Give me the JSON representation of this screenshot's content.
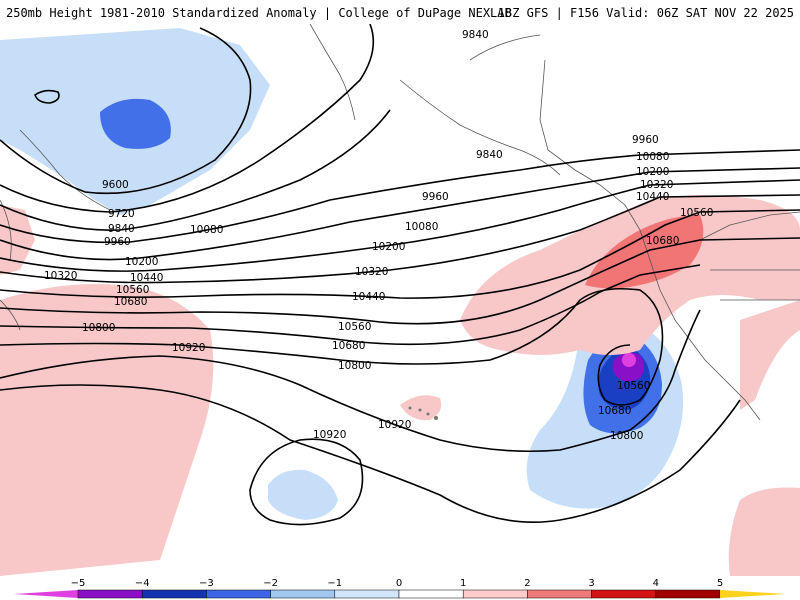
{
  "header": {
    "left_text": "250mb Height 1981-2010 Standardized Anomaly | College of DuPage NEXLAB",
    "right_text": "18Z GFS | F156 Valid: 06Z SAT NOV 22 2025"
  },
  "contours": {
    "c9600": "9600",
    "c9720": "9720",
    "c9840_a": "9840",
    "c9840_b": "9840",
    "c9840_c": "9840",
    "c9960_a": "9960",
    "c9960_b": "9960",
    "c9960_c": "9960",
    "c10080_a": "10080",
    "c10080_b": "10080",
    "c10080_c": "10080",
    "c10200_a": "10200",
    "c10200_b": "10200",
    "c10200_c": "10200",
    "c10320_a": "10320",
    "c10320_b": "10320",
    "c10320_c": "10320",
    "c10440_a": "10440",
    "c10440_b": "10440",
    "c10440_c": "10440",
    "c10560_a": "10560",
    "c10560_b": "10560",
    "c10560_c": "10560",
    "c10560_d": "10560",
    "c10680_a": "10680",
    "c10680_b": "10680",
    "c10680_c": "10680",
    "c10680_d": "10680",
    "c10800_a": "10800",
    "c10800_b": "10800",
    "c10800_c": "10800",
    "c10920_a": "10920",
    "c10920_b": "10920",
    "c10920_c": "10920"
  },
  "colorbar": {
    "ticks": [
      "−5",
      "−4",
      "−3",
      "−2",
      "−1",
      "0",
      "1",
      "2",
      "3",
      "4",
      "5"
    ],
    "colors": [
      "#e040e0",
      "#8a10c8",
      "#1432b4",
      "#3c64e6",
      "#a0c8f0",
      "#d2e6fa",
      "#ffffff",
      "#ffcccc",
      "#f07a7a",
      "#d21414",
      "#a00000",
      "#ffa000",
      "#ffd21e"
    ]
  }
}
